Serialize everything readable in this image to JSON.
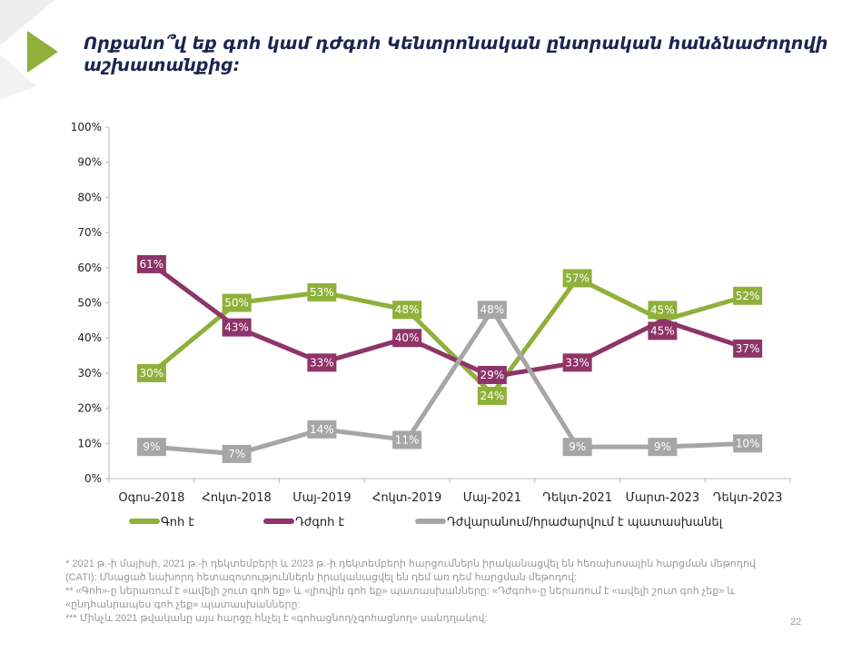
{
  "title": "Որքանո՞վ եք գոհ կամ դժգոհ Կենտրոնական ընտրական հանձնաժողովի աշխատանքից:",
  "chart_data": {
    "type": "line",
    "categories": [
      "Օգոս-2018",
      "Հոկտ-2018",
      "Մայ-2019",
      "Հոկտ-2019",
      "Մայ-2021",
      "Դեկտ-2021",
      "Մարտ-2023",
      "Դեկտ-2023"
    ],
    "ylim": [
      0,
      100
    ],
    "yticks": [
      "0%",
      "10%",
      "20%",
      "30%",
      "40%",
      "50%",
      "60%",
      "70%",
      "80%",
      "90%",
      "100%"
    ],
    "grid": false,
    "legend_position": "bottom",
    "series": [
      {
        "name": "Գոհ է",
        "color": "#8fb03a",
        "values": [
          30,
          50,
          53,
          48,
          24,
          57,
          45,
          52
        ]
      },
      {
        "name": "Դժգոհ է",
        "color": "#8e3468",
        "values": [
          61,
          43,
          33,
          40,
          29,
          33,
          45,
          37
        ]
      },
      {
        "name": "Դժվարանում/հրաժարվում է պատասխանել",
        "color": "#a6a6a6",
        "values": [
          9,
          7,
          14,
          11,
          48,
          9,
          9,
          10
        ]
      }
    ]
  },
  "footnotes": [
    "* 2021 թ.-ի մայիսի, 2021 թ.-ի դեկտեմբերի և 2023 թ.-ի դեկտեմբերի հարցումներն իրականացվել են հեռախոսային հարցման մեթոդով (CATI): Մնացած նախորդ հետազոտություններն իրականացվել են դեմ առ դեմ հարցման մեթոդով:",
    "** «Գոհ»-ը ներառում է «ավելի շուտ գոհ եք» և «լիովին գոհ եք» պատասխանները: «Դժգոհ»-ը ներառում է «ավելի շուտ գոհ չեք» և «ընդհանրապես գոհ չեք» պատասխանները:",
    "*** Մինչև 2021 թվականը այս հարցը հնչել է «գոհացնող/չգոհացնող» սանդղակով:"
  ],
  "page_number": "22"
}
